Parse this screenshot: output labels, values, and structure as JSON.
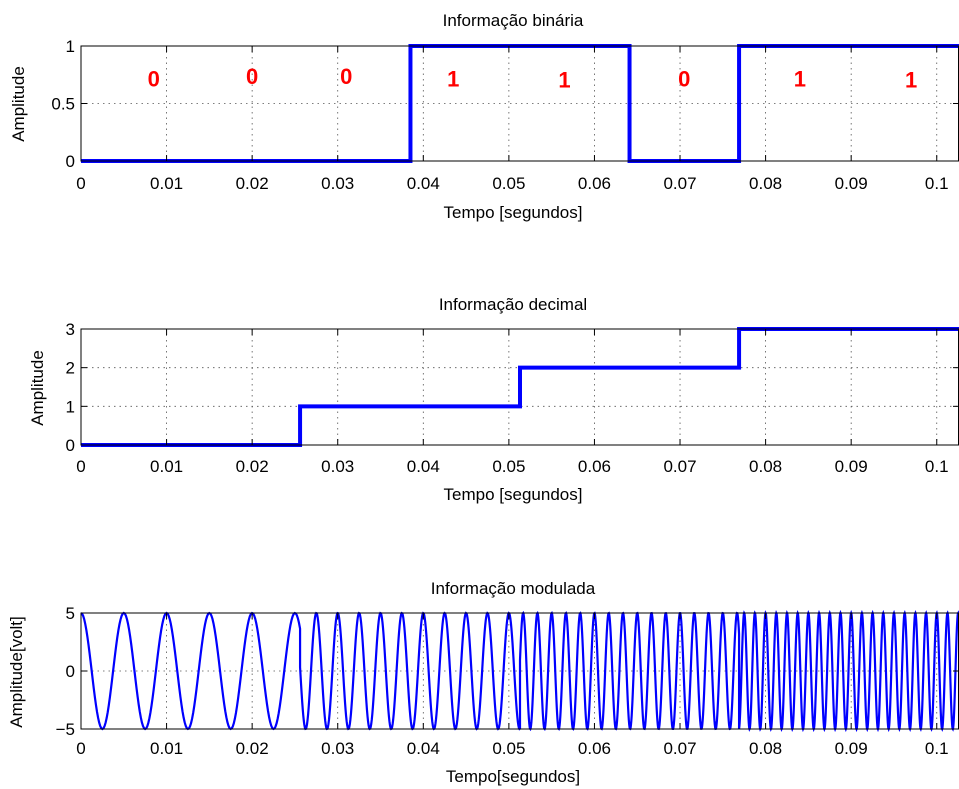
{
  "chart_data": [
    {
      "type": "line",
      "title": "Informação binária",
      "xlabel": "Tempo [segundos]",
      "ylabel": "Amplitude",
      "xlim": [
        0,
        0.1026
      ],
      "ylim": [
        0,
        1
      ],
      "xticks": [
        "0",
        "0.01",
        "0.02",
        "0.03",
        "0.04",
        "0.05",
        "0.06",
        "0.07",
        "0.08",
        "0.09",
        "0.1"
      ],
      "yticks": [
        "0",
        "0.5",
        "1"
      ],
      "grid": true,
      "series": [
        {
          "color": "#0000ff",
          "x": [
            0,
            0.0385,
            0.0385,
            0.0641,
            0.0641,
            0.0769,
            0.0769,
            0.1026
          ],
          "y": [
            0,
            0,
            1,
            1,
            0,
            0,
            1,
            1
          ]
        }
      ],
      "annotations": [
        {
          "text": "0",
          "x": 0.0085,
          "y": 0.65,
          "color": "#ff0000"
        },
        {
          "text": "0",
          "x": 0.02,
          "y": 0.67,
          "color": "#ff0000"
        },
        {
          "text": "0",
          "x": 0.031,
          "y": 0.67,
          "color": "#ff0000"
        },
        {
          "text": "1",
          "x": 0.0435,
          "y": 0.65,
          "color": "#ff0000"
        },
        {
          "text": "1",
          "x": 0.0565,
          "y": 0.64,
          "color": "#ff0000"
        },
        {
          "text": "0",
          "x": 0.0705,
          "y": 0.65,
          "color": "#ff0000"
        },
        {
          "text": "1",
          "x": 0.084,
          "y": 0.65,
          "color": "#ff0000"
        },
        {
          "text": "1",
          "x": 0.097,
          "y": 0.64,
          "color": "#ff0000"
        }
      ]
    },
    {
      "type": "line",
      "title": "Informação decimal",
      "xlabel": "Tempo [segundos]",
      "ylabel": "Amplitude",
      "xlim": [
        0,
        0.1026
      ],
      "ylim": [
        0,
        3
      ],
      "xticks": [
        "0",
        "0.01",
        "0.02",
        "0.03",
        "0.04",
        "0.05",
        "0.06",
        "0.07",
        "0.08",
        "0.09",
        "0.1"
      ],
      "yticks": [
        "0",
        "1",
        "2",
        "3"
      ],
      "grid": true,
      "series": [
        {
          "color": "#0000ff",
          "x": [
            0,
            0.0256,
            0.0256,
            0.0513,
            0.0513,
            0.0769,
            0.0769,
            0.1026
          ],
          "y": [
            0,
            0,
            1,
            1,
            2,
            2,
            3,
            3
          ]
        }
      ]
    },
    {
      "type": "line",
      "title": "Informação modulada",
      "xlabel": "Tempo[segundos]",
      "ylabel": "Amplitude[volt]",
      "xlim": [
        0,
        0.1026
      ],
      "ylim": [
        -5,
        5
      ],
      "xticks": [
        "0",
        "0.01",
        "0.02",
        "0.03",
        "0.04",
        "0.05",
        "0.06",
        "0.07",
        "0.08",
        "0.09",
        "0.1"
      ],
      "yticks": [
        "−5",
        "0",
        "5"
      ],
      "grid": true,
      "series": [
        {
          "color": "#0000ff",
          "signal": "5*cos(2*pi*f*t)",
          "segments": [
            {
              "t_start": 0,
              "t_end": 0.0256,
              "frequency_hz": 200
            },
            {
              "t_start": 0.0256,
              "t_end": 0.0513,
              "frequency_hz": 400
            },
            {
              "t_start": 0.0513,
              "t_end": 0.0769,
              "frequency_hz": 600
            },
            {
              "t_start": 0.0769,
              "t_end": 0.1026,
              "frequency_hz": 800
            }
          ]
        }
      ]
    }
  ]
}
